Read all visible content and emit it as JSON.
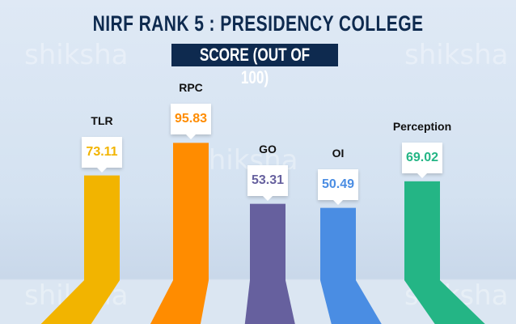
{
  "watermark": "shiksha",
  "chart_data": {
    "type": "bar",
    "title": "NIRF RANK 5 : PRESIDENCY COLLEGE",
    "subtitle": "SCORE (OUT OF 100)",
    "categories": [
      "TLR",
      "RPC",
      "GO",
      "OI",
      "Perception"
    ],
    "values": [
      73.11,
      95.83,
      53.31,
      50.49,
      69.02
    ],
    "value_labels": [
      "73.11",
      "95.83",
      "53.31",
      "50.49",
      "69.02"
    ],
    "colors": [
      "#f2b400",
      "#ff8c00",
      "#66609e",
      "#4a8de3",
      "#24b585"
    ],
    "ylim": [
      0,
      100
    ],
    "grid": false
  }
}
